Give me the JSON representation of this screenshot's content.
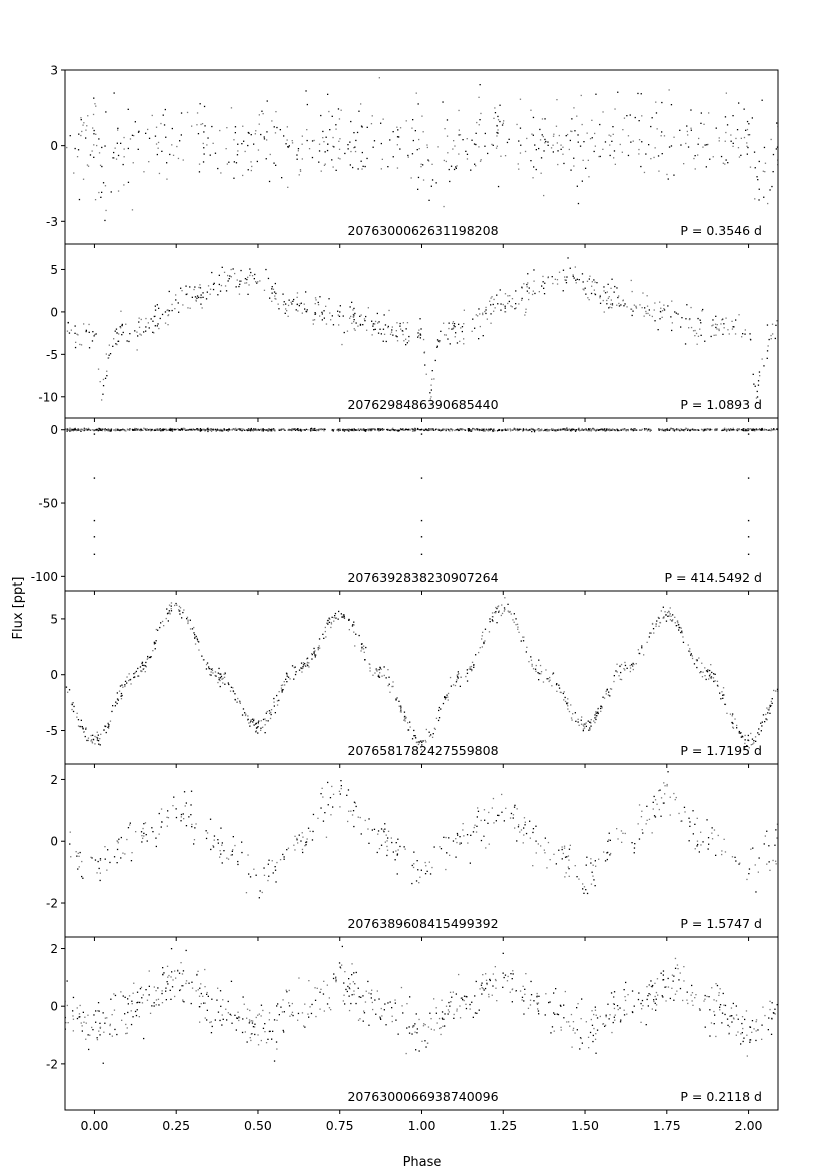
{
  "figure": {
    "ylabel": "Flux [ppt]",
    "xlabel": "Phase"
  },
  "chart_data": {
    "type": "scatter",
    "xlabel": "Phase",
    "ylabel": "Flux [ppt]",
    "xlim": [
      -0.09,
      2.09
    ],
    "x_ticks": [
      0.0,
      0.25,
      0.5,
      0.75,
      1.0,
      1.25,
      1.5,
      1.75,
      2.0
    ],
    "x_tick_labels": [
      "0.00",
      "0.25",
      "0.50",
      "0.75",
      "1.00",
      "1.25",
      "1.50",
      "1.75",
      "2.00"
    ],
    "colors": {
      "odd_cycle": "#000000",
      "even_cycle": "#7a7a7a"
    },
    "grid": false,
    "panels": [
      {
        "star_id": "2076300062631198208",
        "period_label": "P = 0.3546 d",
        "ylim": [
          -3.9,
          3.0
        ],
        "y_ticks": [
          3,
          0,
          -3
        ],
        "y_tick_labels": [
          "3",
          "0",
          "-3"
        ],
        "phase_curve": [
          [
            0.0,
            0.2
          ],
          [
            0.01,
            -0.4
          ],
          [
            0.025,
            -1.0
          ],
          [
            0.04,
            -1.4
          ],
          [
            0.055,
            -1.1
          ],
          [
            0.08,
            -0.3
          ],
          [
            0.12,
            0.2
          ],
          [
            0.2,
            0.3
          ],
          [
            0.3,
            0.4
          ],
          [
            0.4,
            0.1
          ],
          [
            0.5,
            0.2
          ],
          [
            0.6,
            0.3
          ],
          [
            0.7,
            0.2
          ],
          [
            0.8,
            0.2
          ],
          [
            0.9,
            0.1
          ],
          [
            0.95,
            0.3
          ],
          [
            1.0,
            0.2
          ]
        ],
        "scatter_sd": 0.85,
        "n_points": 650,
        "seed": 11
      },
      {
        "star_id": "2076298486390685440",
        "period_label": "P = 1.0893 d",
        "ylim": [
          -12.5,
          8.0
        ],
        "y_ticks": [
          5,
          0,
          -5,
          -10
        ],
        "y_tick_labels": [
          "5",
          "0",
          "-5",
          "-10"
        ],
        "phase_curve": [
          [
            0.0,
            -2.5
          ],
          [
            0.005,
            -3.0
          ],
          [
            0.015,
            -7.5
          ],
          [
            0.025,
            -10.0
          ],
          [
            0.035,
            -7.0
          ],
          [
            0.05,
            -3.5
          ],
          [
            0.08,
            -2.5
          ],
          [
            0.15,
            -1.5
          ],
          [
            0.25,
            1.0
          ],
          [
            0.35,
            3.0
          ],
          [
            0.45,
            4.5
          ],
          [
            0.5,
            3.5
          ],
          [
            0.55,
            2.0
          ],
          [
            0.65,
            0.5
          ],
          [
            0.75,
            -0.5
          ],
          [
            0.85,
            -1.5
          ],
          [
            0.95,
            -2.3
          ],
          [
            1.0,
            -2.5
          ]
        ],
        "scatter_sd": 0.9,
        "n_points": 700,
        "seed": 23
      },
      {
        "star_id": "2076392838230907264",
        "period_label": "P = 414.5492 d",
        "ylim": [
          -110.0,
          8.0
        ],
        "y_ticks": [
          0,
          -50,
          -100
        ],
        "y_tick_labels": [
          "0",
          "-50",
          "-100"
        ],
        "phase_curve": [
          [
            0.0,
            0.0
          ],
          [
            1.0,
            0.0
          ]
        ],
        "scatter_sd": 0.4,
        "n_points": 1400,
        "gaps": [
          [
            0.71,
            0.725
          ],
          [
            0.705,
            0.725
          ]
        ],
        "eclipse_points": [
          -3,
          -33,
          -62,
          -73,
          -85
        ],
        "eclipse_phases": [
          0.0,
          1.0,
          2.0
        ],
        "seed": 37
      },
      {
        "star_id": "2076581782427559808",
        "period_label": "P =  1.7195 d",
        "ylim": [
          -8.0,
          7.5
        ],
        "y_ticks": [
          5,
          0,
          -5
        ],
        "y_tick_labels": [
          "5",
          "0",
          "-5"
        ],
        "phase_curve": [
          [
            0.0,
            -6.0
          ],
          [
            0.125,
            0.0
          ],
          [
            0.25,
            6.0
          ],
          [
            0.375,
            0.0
          ],
          [
            0.5,
            -4.5
          ],
          [
            0.625,
            0.5
          ],
          [
            0.75,
            5.3
          ],
          [
            0.875,
            0.0
          ],
          [
            1.0,
            -6.0
          ]
        ],
        "smooth": true,
        "scatter_sd": 0.35,
        "n_points": 900,
        "seed": 41
      },
      {
        "star_id": "2076389608415499392",
        "period_label": "P = 1.5747 d",
        "ylim": [
          -3.1,
          2.5
        ],
        "y_ticks": [
          2,
          0,
          -2
        ],
        "y_tick_labels": [
          "2",
          "0",
          "-2"
        ],
        "phase_curve": [
          [
            0.0,
            -0.9
          ],
          [
            0.125,
            0.1
          ],
          [
            0.25,
            1.0
          ],
          [
            0.375,
            -0.1
          ],
          [
            0.5,
            -1.2
          ],
          [
            0.625,
            0.1
          ],
          [
            0.75,
            1.4
          ],
          [
            0.875,
            0.1
          ],
          [
            1.0,
            -0.9
          ]
        ],
        "smooth": true,
        "scatter_sd": 0.35,
        "n_points": 520,
        "seed": 53
      },
      {
        "star_id": "2076300066938740096",
        "period_label": "P = 0.2118 d",
        "ylim": [
          -3.6,
          2.4
        ],
        "y_ticks": [
          2,
          0,
          -2
        ],
        "y_tick_labels": [
          "2",
          "0",
          "-2"
        ],
        "phase_curve": [
          [
            0.0,
            -0.8
          ],
          [
            0.125,
            0.1
          ],
          [
            0.25,
            0.9
          ],
          [
            0.375,
            0.0
          ],
          [
            0.5,
            -0.8
          ],
          [
            0.625,
            0.0
          ],
          [
            0.75,
            0.7
          ],
          [
            0.875,
            0.0
          ],
          [
            1.0,
            -0.8
          ]
        ],
        "smooth": true,
        "scatter_sd": 0.4,
        "n_points": 800,
        "seed": 67
      }
    ]
  }
}
